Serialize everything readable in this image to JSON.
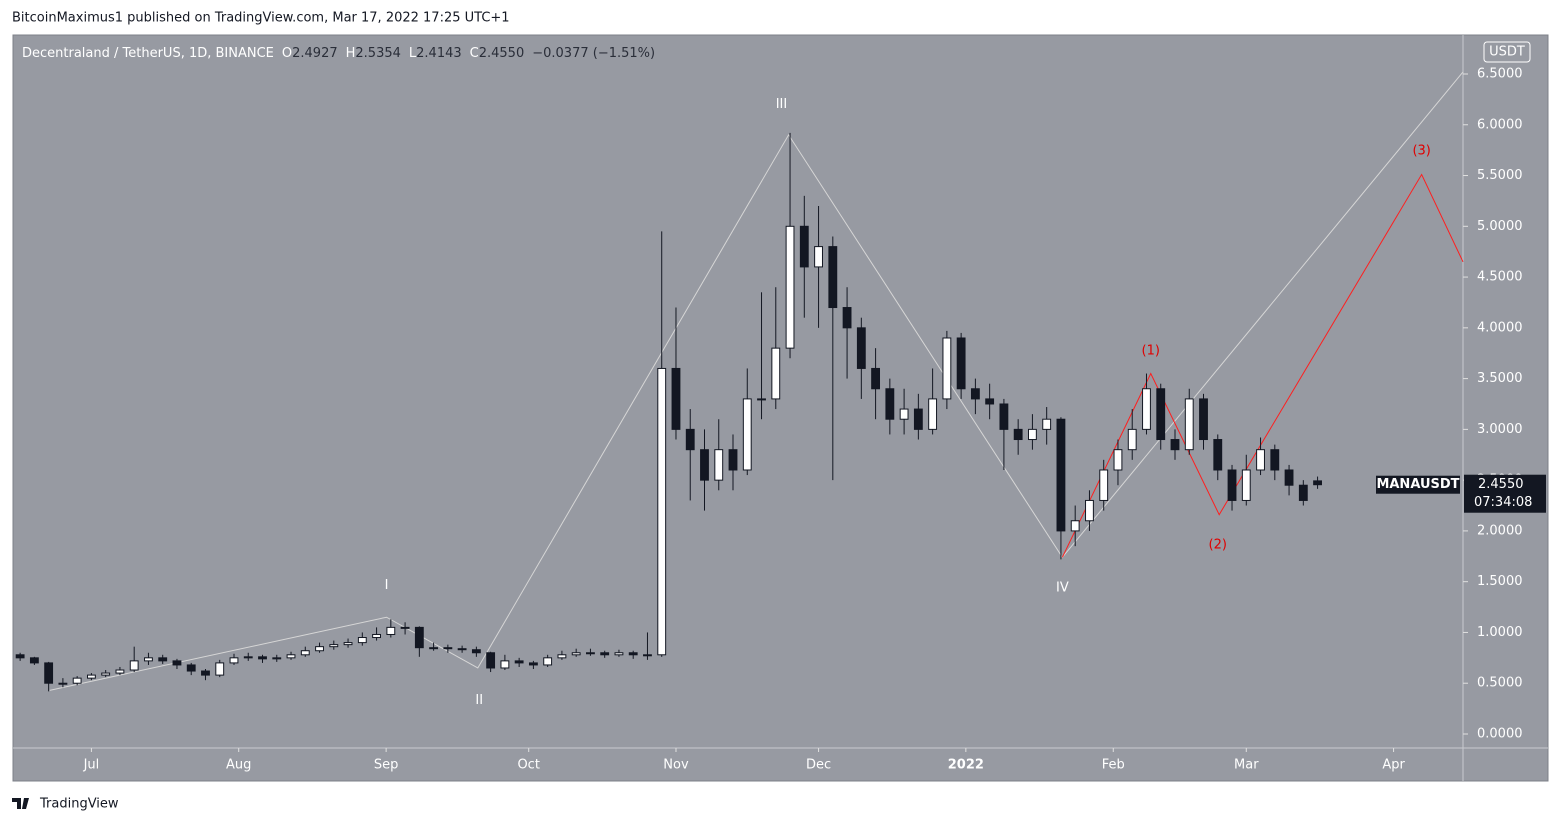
{
  "header": {
    "byline": "BitcoinMaximus1 published on TradingView.com, Mar 17, 2022 17:25 UTC+1"
  },
  "footer": {
    "brand": "TradingView"
  },
  "chart_data": {
    "type": "candlestick",
    "legend": {
      "symbol": "Decentraland / TetherUS, 1D, BINANCE",
      "items": [
        {
          "key": "O",
          "value": "2.4927"
        },
        {
          "key": "H",
          "value": "2.5354"
        },
        {
          "key": "L",
          "value": "2.4143"
        },
        {
          "key": "C",
          "value": "2.4550"
        }
      ],
      "change": "−0.0377 (−1.51%)"
    },
    "currency": "USDT",
    "price_tag": {
      "symbol": "MANAUSDT",
      "price": "2.4550",
      "countdown": "07:34:08"
    },
    "up_color": "#ffffff",
    "down_color": "#131722",
    "categories": [
      null,
      null,
      null,
      null,
      null,
      null,
      null,
      null,
      null,
      null,
      null,
      null,
      null,
      null,
      null,
      null,
      null,
      null,
      null,
      null,
      null,
      null,
      null,
      null,
      null,
      null,
      null,
      null,
      null,
      null,
      null,
      null,
      null,
      null,
      null,
      null,
      null,
      null,
      null,
      null,
      null,
      null,
      null,
      null,
      null,
      null,
      null,
      null,
      null,
      null,
      null,
      null,
      null,
      null,
      null,
      null,
      null,
      null,
      null,
      null,
      null,
      null,
      null,
      null,
      null,
      null,
      null,
      null,
      null,
      null,
      null,
      null,
      null,
      null,
      null,
      null,
      null,
      null,
      null,
      null,
      null,
      null,
      null,
      null,
      null,
      null,
      null,
      null,
      null,
      null,
      null,
      null
    ],
    "ohlc": {
      "open": [
        0.78,
        0.75,
        0.7,
        0.5,
        0.5,
        0.55,
        0.58,
        0.6,
        0.63,
        0.72,
        0.75,
        0.72,
        0.68,
        0.62,
        0.58,
        0.7,
        0.75,
        0.76,
        0.74,
        0.75,
        0.78,
        0.82,
        0.86,
        0.88,
        0.9,
        0.95,
        0.98,
        1.05,
        1.05,
        0.85,
        0.85,
        0.84,
        0.83,
        0.8,
        0.65,
        0.72,
        0.7,
        0.68,
        0.75,
        0.78,
        0.8,
        0.8,
        0.78,
        0.8,
        0.78,
        0.78,
        3.6,
        3.0,
        2.8,
        2.5,
        2.8,
        2.6,
        3.3,
        3.3,
        3.8,
        5.0,
        4.6,
        4.8,
        4.2,
        4.0,
        3.6,
        3.4,
        3.1,
        3.2,
        3.0,
        3.3,
        3.9,
        3.4,
        3.3,
        3.25,
        3.0,
        2.9,
        3.0,
        3.1,
        2.0,
        2.1,
        2.3,
        2.6,
        2.8,
        3.0,
        3.4,
        2.9,
        2.8,
        3.3,
        2.9,
        2.6,
        2.3,
        2.6,
        2.8,
        2.6,
        2.45,
        2.4927
      ],
      "high": [
        0.8,
        0.76,
        0.71,
        0.55,
        0.57,
        0.6,
        0.63,
        0.66,
        0.86,
        0.8,
        0.78,
        0.74,
        0.7,
        0.64,
        0.73,
        0.79,
        0.8,
        0.78,
        0.78,
        0.81,
        0.86,
        0.9,
        0.92,
        0.94,
        1.0,
        1.05,
        1.13,
        1.1,
        1.06,
        0.9,
        0.88,
        0.87,
        0.86,
        0.81,
        0.78,
        0.75,
        0.72,
        0.78,
        0.82,
        0.84,
        0.84,
        0.82,
        0.83,
        0.82,
        1.0,
        4.95,
        4.2,
        3.2,
        3.0,
        3.1,
        2.95,
        3.6,
        4.35,
        4.4,
        5.92,
        5.3,
        5.2,
        4.9,
        4.4,
        4.1,
        3.8,
        3.5,
        3.4,
        3.35,
        3.6,
        3.97,
        3.95,
        3.5,
        3.45,
        3.3,
        3.1,
        3.15,
        3.22,
        3.12,
        2.25,
        2.4,
        2.7,
        2.9,
        3.2,
        3.55,
        3.45,
        3.0,
        3.4,
        3.35,
        2.95,
        2.65,
        2.75,
        2.92,
        2.85,
        2.65,
        2.5,
        2.5354
      ],
      "low": [
        0.72,
        0.68,
        0.42,
        0.46,
        0.48,
        0.53,
        0.56,
        0.58,
        0.61,
        0.68,
        0.69,
        0.64,
        0.58,
        0.53,
        0.56,
        0.68,
        0.72,
        0.7,
        0.71,
        0.73,
        0.76,
        0.8,
        0.83,
        0.85,
        0.87,
        0.92,
        0.95,
        0.98,
        0.76,
        0.82,
        0.8,
        0.8,
        0.76,
        0.61,
        0.63,
        0.66,
        0.64,
        0.66,
        0.73,
        0.76,
        0.77,
        0.75,
        0.76,
        0.74,
        0.73,
        0.76,
        2.9,
        2.3,
        2.2,
        2.4,
        2.4,
        2.55,
        3.1,
        3.2,
        3.7,
        4.1,
        4.0,
        2.5,
        3.5,
        3.3,
        3.1,
        2.95,
        2.95,
        2.9,
        2.95,
        3.2,
        3.3,
        3.15,
        3.1,
        2.6,
        2.75,
        2.8,
        2.85,
        1.72,
        1.85,
        2.0,
        2.2,
        2.45,
        2.7,
        2.95,
        2.8,
        2.7,
        2.75,
        2.8,
        2.5,
        2.2,
        2.25,
        2.55,
        2.5,
        2.35,
        2.25,
        2.4143
      ],
      "close": [
        0.75,
        0.7,
        0.5,
        0.5,
        0.55,
        0.58,
        0.6,
        0.63,
        0.72,
        0.75,
        0.72,
        0.68,
        0.62,
        0.58,
        0.7,
        0.75,
        0.76,
        0.74,
        0.75,
        0.78,
        0.82,
        0.86,
        0.88,
        0.9,
        0.95,
        0.98,
        1.05,
        1.05,
        0.85,
        0.85,
        0.84,
        0.83,
        0.8,
        0.65,
        0.72,
        0.7,
        0.68,
        0.75,
        0.78,
        0.8,
        0.8,
        0.78,
        0.8,
        0.78,
        0.78,
        3.6,
        3.0,
        2.8,
        2.5,
        2.8,
        2.6,
        3.3,
        3.3,
        3.8,
        5.0,
        4.6,
        4.8,
        4.2,
        4.0,
        3.6,
        3.4,
        3.1,
        3.2,
        3.0,
        3.3,
        3.9,
        3.4,
        3.3,
        3.25,
        3.0,
        2.9,
        3.0,
        3.1,
        2.0,
        2.1,
        2.3,
        2.6,
        2.8,
        3.0,
        3.4,
        2.9,
        2.8,
        3.3,
        2.9,
        2.6,
        2.3,
        2.6,
        2.8,
        2.6,
        2.45,
        2.3,
        2.455
      ]
    },
    "xlim": [
      -0.5,
      101.2
    ],
    "xticks": [
      {
        "value": 5,
        "label": "Jul"
      },
      {
        "value": 15.33,
        "label": "Aug"
      },
      {
        "value": 25.67,
        "label": "Sep"
      },
      {
        "value": 35.67,
        "label": "Oct"
      },
      {
        "value": 46,
        "label": "Nov"
      },
      {
        "value": 56,
        "label": "Dec"
      },
      {
        "value": 66.33,
        "label": "2022",
        "bold": true
      },
      {
        "value": 76.67,
        "label": "Feb"
      },
      {
        "value": 86,
        "label": "Mar"
      },
      {
        "value": 96.33,
        "label": "Apr"
      }
    ],
    "ylim": [
      -0.138,
      6.884
    ],
    "yticks": [
      {
        "value": 0,
        "label": "0.0000"
      },
      {
        "value": 0.5,
        "label": "0.5000"
      },
      {
        "value": 1,
        "label": "1.0000"
      },
      {
        "value": 1.5,
        "label": "1.5000"
      },
      {
        "value": 2,
        "label": "2.0000"
      },
      {
        "value": 2.5,
        "label": "2.5000"
      },
      {
        "value": 3,
        "label": "3.0000"
      },
      {
        "value": 3.5,
        "label": "3.5000"
      },
      {
        "value": 4,
        "label": "4.0000"
      },
      {
        "value": 4.5,
        "label": "4.5000"
      },
      {
        "value": 5,
        "label": "5.0000"
      },
      {
        "value": 5.5,
        "label": "5.5000"
      },
      {
        "value": 6,
        "label": "6.0000"
      },
      {
        "value": 6.5,
        "label": "6.5000"
      }
    ],
    "wave_lines": [
      {
        "color": "#d6d6d6",
        "points": [
          {
            "x": 2.07,
            "y": 0.43
          },
          {
            "x": 25.7,
            "y": 1.15
          },
          {
            "x": 32.1,
            "y": 0.65
          },
          {
            "x": 53.9,
            "y": 5.9
          },
          {
            "x": 73.1,
            "y": 1.74
          },
          {
            "x": 101.2,
            "y": 6.52
          }
        ]
      },
      {
        "color": "#ff1e1e",
        "points": [
          {
            "x": 73.1,
            "y": 1.74
          },
          {
            "x": 79.3,
            "y": 3.55
          },
          {
            "x": 84.1,
            "y": 2.16
          },
          {
            "x": 98.3,
            "y": 5.51
          },
          {
            "x": 101.2,
            "y": 4.65
          }
        ]
      }
    ],
    "wave_labels": [
      {
        "text": "I",
        "x": 25.7,
        "y": 1.46,
        "color": "#ffffff"
      },
      {
        "text": "II",
        "x": 32.2,
        "y": 0.33,
        "color": "#ffffff"
      },
      {
        "text": "III",
        "x": 53.4,
        "y": 6.2,
        "color": "#ffffff"
      },
      {
        "text": "IV",
        "x": 73.1,
        "y": 1.44,
        "color": "#ffffff"
      },
      {
        "text": "(1)",
        "x": 79.3,
        "y": 3.77,
        "color": "#e00000"
      },
      {
        "text": "(2)",
        "x": 84,
        "y": 1.86,
        "color": "#e00000"
      },
      {
        "text": "(3)",
        "x": 98.3,
        "y": 5.74,
        "color": "#e00000"
      }
    ]
  }
}
